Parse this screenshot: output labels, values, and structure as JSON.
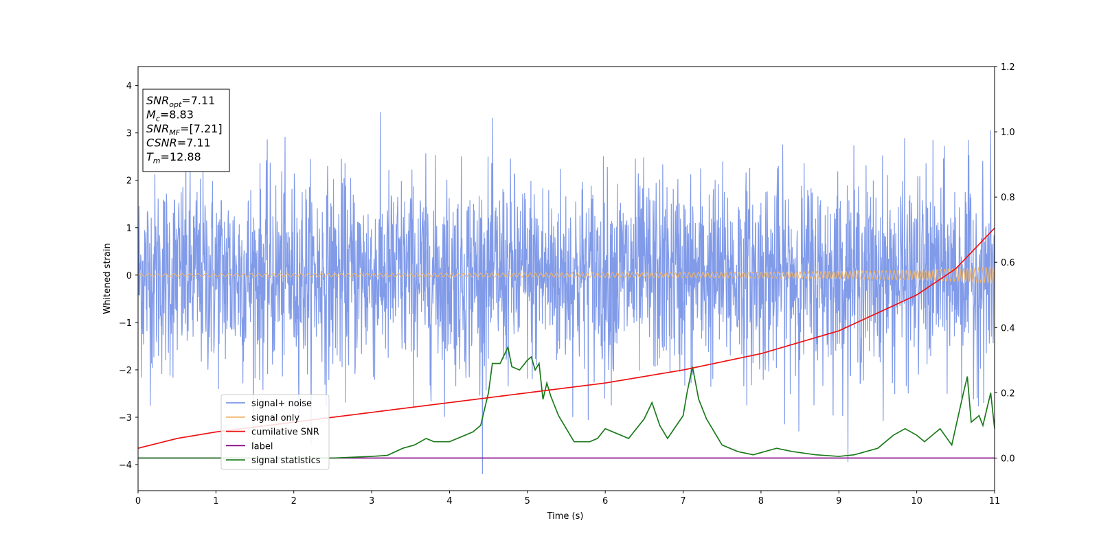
{
  "chart_data": {
    "type": "line",
    "xlabel": "Time (s)",
    "ylabel": "Whitened strain",
    "xlim": [
      0,
      11
    ],
    "ylim_left": [
      -4.55,
      4.4
    ],
    "ylim_right": [
      -0.1,
      1.2
    ],
    "x_ticks": [
      0,
      1,
      2,
      3,
      4,
      5,
      6,
      7,
      8,
      9,
      10,
      11
    ],
    "y_ticks_left": [
      -4,
      -3,
      -2,
      -1,
      0,
      1,
      2,
      3,
      4
    ],
    "y_ticks_right": [
      0.0,
      0.2,
      0.4,
      0.6,
      0.8,
      1.0,
      1.2
    ],
    "grid": false,
    "legend_position": "lower-left",
    "annotation": {
      "lines": [
        {
          "sym": "SNR",
          "sub": "opt",
          "val": "=7.11"
        },
        {
          "sym": "M",
          "sub": "c",
          "val": "=8.83"
        },
        {
          "sym": "SNR",
          "sub": "MF",
          "val": "=[7.21]"
        },
        {
          "sym": "CSNR",
          "sub": "",
          "val": "=7.11"
        },
        {
          "sym": "T",
          "sub": "m",
          "val": "=12.88"
        }
      ]
    },
    "series": [
      {
        "name": "signal+ noise",
        "color": "#7a96e8",
        "axis": "left",
        "description": "noisy whitened strain, approx. range -4.2 to 4.0, spread roughly +/-2.2"
      },
      {
        "name": "signal only",
        "color": "#f0b56a",
        "axis": "left",
        "envelope": {
          "x": [
            0,
            4,
            8,
            10,
            11
          ],
          "amp": [
            0.03,
            0.04,
            0.06,
            0.1,
            0.17
          ]
        }
      },
      {
        "name": "cumilative SNR",
        "color": "#ee1111",
        "axis": "right",
        "x": [
          0,
          0.5,
          1,
          2,
          3,
          4,
          5,
          6,
          7,
          8,
          9,
          10,
          10.5,
          11
        ],
        "y": [
          0.03,
          0.06,
          0.08,
          0.11,
          0.14,
          0.17,
          0.2,
          0.23,
          0.27,
          0.32,
          0.39,
          0.5,
          0.58,
          0.705
        ]
      },
      {
        "name": "label",
        "color": "#800080",
        "axis": "right",
        "x": [
          0,
          11
        ],
        "y": [
          0.0,
          0.0
        ]
      },
      {
        "name": "signal statistics",
        "color": "#1a7a1a",
        "axis": "right",
        "x": [
          0,
          2.5,
          3,
          3.2,
          3.4,
          3.55,
          3.7,
          3.8,
          4.0,
          4.2,
          4.3,
          4.4,
          4.5,
          4.55,
          4.65,
          4.75,
          4.8,
          4.9,
          5.0,
          5.05,
          5.1,
          5.15,
          5.2,
          5.25,
          5.3,
          5.4,
          5.5,
          5.6,
          5.7,
          5.8,
          5.9,
          6.0,
          6.1,
          6.3,
          6.5,
          6.6,
          6.7,
          6.8,
          7.0,
          7.05,
          7.12,
          7.2,
          7.3,
          7.5,
          7.7,
          7.9,
          8.2,
          8.4,
          8.7,
          9.0,
          9.2,
          9.5,
          9.7,
          9.85,
          10.0,
          10.1,
          10.3,
          10.45,
          10.6,
          10.65,
          10.7,
          10.8,
          10.85,
          10.95,
          11.0
        ],
        "y": [
          0.0,
          0.0,
          0.005,
          0.008,
          0.03,
          0.04,
          0.06,
          0.05,
          0.05,
          0.07,
          0.08,
          0.1,
          0.2,
          0.29,
          0.29,
          0.34,
          0.28,
          0.27,
          0.3,
          0.31,
          0.27,
          0.29,
          0.18,
          0.23,
          0.19,
          0.13,
          0.09,
          0.05,
          0.05,
          0.05,
          0.06,
          0.09,
          0.08,
          0.06,
          0.12,
          0.17,
          0.1,
          0.06,
          0.13,
          0.2,
          0.28,
          0.18,
          0.12,
          0.04,
          0.02,
          0.01,
          0.03,
          0.02,
          0.01,
          0.005,
          0.01,
          0.03,
          0.07,
          0.09,
          0.07,
          0.05,
          0.09,
          0.04,
          0.2,
          0.25,
          0.11,
          0.13,
          0.1,
          0.2,
          0.09
        ]
      }
    ]
  }
}
